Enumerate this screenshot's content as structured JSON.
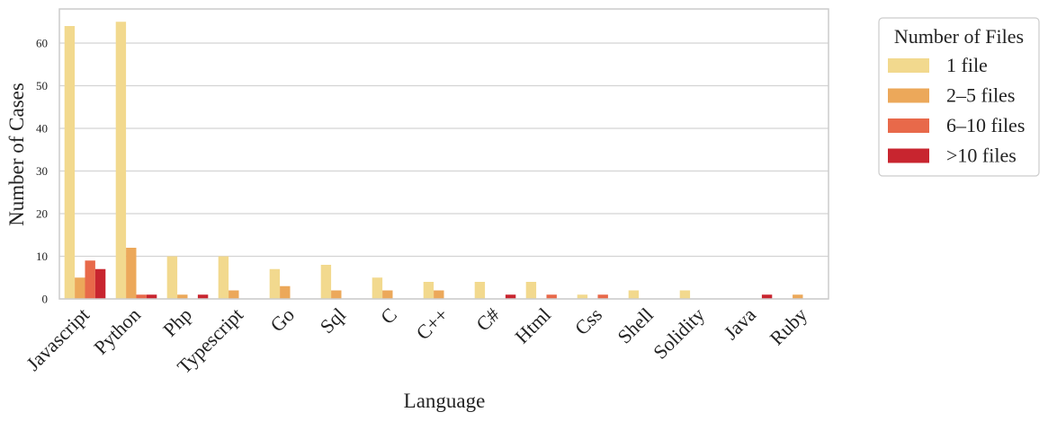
{
  "chart_data": {
    "type": "bar",
    "xlabel": "Language",
    "ylabel": "Number of Cases",
    "ylim": [
      0,
      68
    ],
    "yticks": [
      0,
      10,
      20,
      30,
      40,
      50,
      60
    ],
    "grid": true,
    "categories": [
      "Javascript",
      "Python",
      "Php",
      "Typescript",
      "Go",
      "Sql",
      "C",
      "C++",
      "C#",
      "Html",
      "Css",
      "Shell",
      "Solidity",
      "Java",
      "Ruby"
    ],
    "legend": {
      "title": "Number of Files",
      "placement": "outside-right-top"
    },
    "series": [
      {
        "name": "1 file",
        "color": "#f2d98e",
        "values": [
          64,
          65,
          10,
          10,
          7,
          8,
          5,
          4,
          4,
          4,
          1,
          2,
          2,
          0,
          0
        ]
      },
      {
        "name": "2–5 files",
        "color": "#eca85a",
        "values": [
          5,
          12,
          1,
          2,
          3,
          2,
          2,
          2,
          0,
          0,
          0,
          0,
          0,
          0,
          1
        ]
      },
      {
        "name": "6–10 files",
        "color": "#e8694a",
        "values": [
          9,
          1,
          0,
          0,
          0,
          0,
          0,
          0,
          0,
          1,
          1,
          0,
          0,
          0,
          0
        ]
      },
      {
        "name": ">10 files",
        "color": "#c8252f",
        "values": [
          7,
          1,
          1,
          0,
          0,
          0,
          0,
          0,
          1,
          0,
          0,
          0,
          0,
          1,
          0
        ]
      }
    ]
  }
}
